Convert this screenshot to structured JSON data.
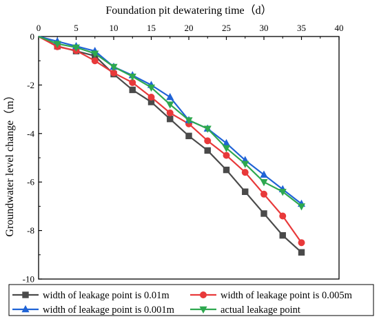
{
  "chart_data": {
    "type": "line",
    "xlabel": "Foundation pit dewatering time（d）",
    "ylabel": "Groundwater level change（m）",
    "x_axis_position": "top",
    "xlim": [
      0,
      40
    ],
    "ylim": [
      -10,
      0
    ],
    "x_ticks": [
      "0",
      "5",
      "10",
      "15",
      "20",
      "25",
      "30",
      "35",
      "40"
    ],
    "y_ticks": [
      "0",
      "-2",
      "-4",
      "-6",
      "-8",
      "-10"
    ],
    "grid": false,
    "legend_position": "bottom",
    "x": [
      0,
      2.5,
      5,
      7.5,
      10,
      12.5,
      15,
      17.5,
      20,
      22.5,
      25,
      27.5,
      30,
      32.5,
      35
    ],
    "series": [
      {
        "name": "width of leakage point is 0.01m",
        "color": "#4a4a4a",
        "marker": "square",
        "values": [
          0,
          -0.4,
          -0.6,
          -0.8,
          -1.55,
          -2.2,
          -2.7,
          -3.4,
          -4.1,
          -4.7,
          -5.5,
          -6.4,
          -7.3,
          -8.2,
          -8.9
        ]
      },
      {
        "name": "width of leakage point is 0.005m",
        "color": "#e8393a",
        "marker": "circle",
        "values": [
          0,
          -0.42,
          -0.58,
          -1.0,
          -1.5,
          -1.9,
          -2.5,
          -3.15,
          -3.6,
          -4.3,
          -4.9,
          -5.6,
          -6.5,
          -7.4,
          -8.5
        ]
      },
      {
        "name": "width of leakage point is 0.001m",
        "color": "#1f63d6",
        "marker": "triangle-up",
        "values": [
          0,
          -0.2,
          -0.4,
          -0.6,
          -1.25,
          -1.6,
          -2.0,
          -2.5,
          -3.45,
          -3.8,
          -4.4,
          -5.1,
          -5.7,
          -6.3,
          -6.9
        ]
      },
      {
        "name": "actual leakage point",
        "color": "#2ea84f",
        "marker": "triangle-down",
        "values": [
          0,
          -0.3,
          -0.45,
          -0.7,
          -1.25,
          -1.65,
          -2.1,
          -2.8,
          -3.45,
          -3.8,
          -4.6,
          -5.25,
          -6.0,
          -6.4,
          -7.0
        ]
      }
    ]
  }
}
